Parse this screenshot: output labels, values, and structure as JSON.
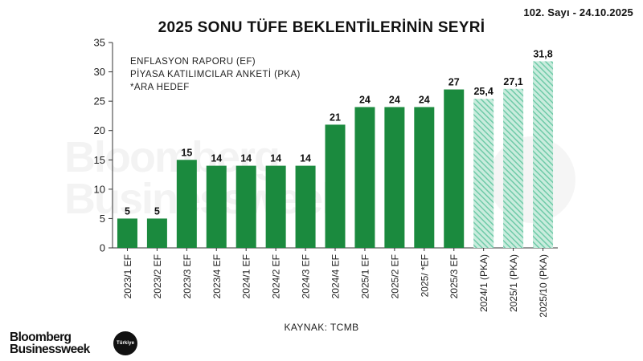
{
  "header": {
    "issue": "102. Sayı - 24.10.2025",
    "title": "2025 SONU TÜFE BEKLENTİLERİNİN SEYRİ"
  },
  "legend": {
    "line1": "ENFLASYON RAPORU (EF)",
    "line2": "PİYASA KATILIMCILAR ANKETİ (PKA)",
    "line3": "*ARA HEDEF"
  },
  "source": "KAYNAK: TCMB",
  "brand": {
    "line1": "Bloomberg",
    "line2": "Businessweek",
    "badge": "Türkiye"
  },
  "watermark": {
    "line1": "Bloomberg",
    "line2": "Businessweek"
  },
  "colors": {
    "ef_solid": "#1b8a3e",
    "pka_hatch": "#6fcaa8",
    "pka_hatch_light": "#c9ecdd",
    "axis": "#333333",
    "text": "#111111"
  },
  "chart_data": {
    "type": "bar",
    "title": "2025 SONU TÜFE BEKLENTİLERİNİN SEYRİ",
    "xlabel": "",
    "ylabel": "",
    "ylim": [
      0,
      35
    ],
    "yticks": [
      0,
      5,
      10,
      15,
      20,
      25,
      30,
      35
    ],
    "grid": false,
    "categories": [
      "2023/1 EF",
      "2023/2 EF",
      "2023/3 EF",
      "2023/4 EF",
      "2024/1 EF",
      "2024/2 EF",
      "2024/3 EF",
      "2024/4 EF",
      "2025/1 EF",
      "2025/2 EF",
      "2025/ *EF",
      "2025/3 EF",
      "2024/1 (PKA)",
      "2025/1 (PKA)",
      "2025/10 (PKA)"
    ],
    "values": [
      5,
      5,
      15,
      14,
      14,
      14,
      14,
      21,
      24,
      24,
      24,
      27,
      25.4,
      27.1,
      31.8
    ],
    "value_labels": [
      "5",
      "5",
      "15",
      "14",
      "14",
      "14",
      "14",
      "21",
      "24",
      "24",
      "24",
      "27",
      "25,4",
      "27,1",
      "31,8"
    ],
    "styles": [
      "solid",
      "solid",
      "solid",
      "solid",
      "solid",
      "solid",
      "solid",
      "solid",
      "solid",
      "solid",
      "solid",
      "solid",
      "hatched",
      "hatched",
      "hatched"
    ]
  }
}
